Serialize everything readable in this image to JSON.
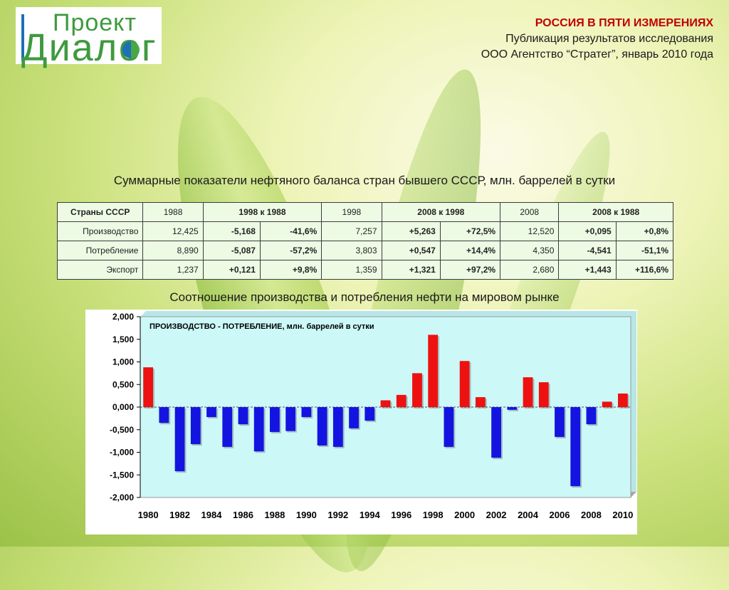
{
  "logo": {
    "line1": "Проект",
    "line2": "Диалог"
  },
  "header": {
    "title": "РОССИЯ В ПЯТИ ИЗМЕРЕНИЯХ",
    "line2": "Публикация результатов исследования",
    "line3": "ООО Агентство “Стратег”, январь 2010 года"
  },
  "table": {
    "title": "Суммарные показатели нефтяного баланса стран бывшего СССР, млн. баррелей в сутки",
    "headers": [
      "Страны СССР",
      "1988",
      "1998 к 1988",
      "1998",
      "2008 к 1998",
      "2008",
      "2008 к 1988"
    ],
    "rows": [
      {
        "label": "Производство",
        "v1988": "12,425",
        "d1": "-5,168",
        "p1": "-41,6%",
        "v1998": "7,257",
        "d2": "+5,263",
        "p2": "+72,5%",
        "v2008": "12,520",
        "d3": "+0,095",
        "p3": "+0,8%"
      },
      {
        "label": "Потребление",
        "v1988": "8,890",
        "d1": "-5,087",
        "p1": "-57,2%",
        "v1998": "3,803",
        "d2": "+0,547",
        "p2": "+14,4%",
        "v2008": "4,350",
        "d3": "-4,541",
        "p3": "-51,1%"
      },
      {
        "label": "Экспорт",
        "v1988": "1,237",
        "d1": "+0,121",
        "p1": "+9,8%",
        "v1998": "1,359",
        "d2": "+1,321",
        "p2": "+97,2%",
        "v2008": "2,680",
        "d3": "+1,443",
        "p3": "+116,6%"
      }
    ]
  },
  "chart_title": "Соотношение производства и потребления нефти на мировом рынке",
  "chart_data": {
    "type": "bar",
    "title": "ПРОИЗВОДСТВО - ПОТРЕБЛЕНИЕ, млн. баррелей в сутки",
    "x": [
      1980,
      1981,
      1982,
      1983,
      1984,
      1985,
      1986,
      1987,
      1988,
      1989,
      1990,
      1991,
      1992,
      1993,
      1994,
      1995,
      1996,
      1997,
      1998,
      1999,
      2000,
      2001,
      2002,
      2003,
      2004,
      2005,
      2006,
      2007,
      2008,
      2009,
      2010
    ],
    "values": [
      0.88,
      -0.35,
      -1.42,
      -0.82,
      -0.22,
      -0.88,
      -0.38,
      -0.98,
      -0.55,
      -0.53,
      -0.22,
      -0.85,
      -0.88,
      -0.47,
      -0.3,
      0.15,
      0.27,
      0.75,
      1.6,
      -0.88,
      1.02,
      0.22,
      -1.12,
      -0.06,
      0.66,
      0.55,
      -0.66,
      -1.75,
      -0.38,
      0.12,
      0.3
    ],
    "ylim": [
      -2.0,
      2.0
    ],
    "yticks": [
      2.0,
      1.5,
      1.0,
      0.5,
      0.0,
      -0.5,
      -1.0,
      -1.5,
      -2.0
    ],
    "ytick_labels": [
      "2,000",
      "1,500",
      "1,000",
      "0,500",
      "0,000",
      "-0,500",
      "-1,000",
      "-1,500",
      "-2,000"
    ],
    "xtick_labels": [
      "1980",
      "1982",
      "1984",
      "1986",
      "1988",
      "1990",
      "1992",
      "1994",
      "1996",
      "1998",
      "2000",
      "2002",
      "2004",
      "2006",
      "2008",
      "2010"
    ],
    "grid": false,
    "colors": {
      "positive": "#ee1111",
      "negative": "#1414e0",
      "plot_bg": "#ccf8f8"
    }
  }
}
